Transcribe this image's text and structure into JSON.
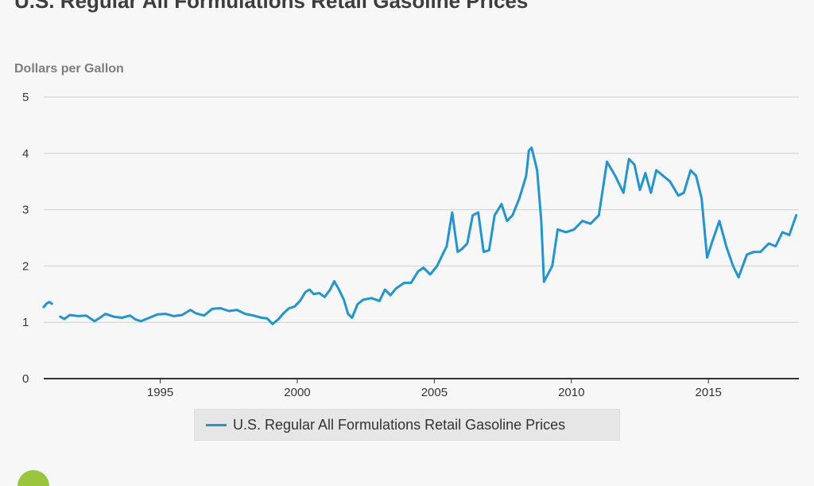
{
  "title": "U.S. Regular All Formulations Retail Gasoline Prices",
  "chart_data": {
    "type": "line",
    "title": "U.S. Regular All Formulations Retail Gasoline Prices",
    "ylabel": "Dollars per Gallon",
    "xlabel": "",
    "ylim": [
      0,
      5
    ],
    "xlim": [
      1990.75,
      2018.3
    ],
    "yticks": [
      0,
      1,
      2,
      3,
      4,
      5
    ],
    "xticks": [
      1995,
      2000,
      2005,
      2010,
      2015
    ],
    "grid": true,
    "legend_position": "bottom",
    "series": [
      {
        "name": "U.S. Regular All Formulations Retail Gasoline Prices",
        "color": "#1f96d3",
        "segments": [
          {
            "x": [
              1990.75,
              1990.85,
              1990.95,
              1991.05
            ],
            "y": [
              1.27,
              1.33,
              1.36,
              1.33
            ]
          },
          {
            "x": [
              1991.35,
              1991.5,
              1991.7,
              1992.0,
              1992.3,
              1992.6,
              1992.8,
              1993.0,
              1993.3,
              1993.6,
              1993.9,
              1994.1,
              1994.3,
              1994.6,
              1994.9,
              1995.2,
              1995.5,
              1995.8,
              1996.1,
              1996.3,
              1996.6,
              1996.9,
              1997.2,
              1997.5,
              1997.8,
              1998.1,
              1998.4,
              1998.7,
              1998.9,
              1999.1,
              1999.3,
              1999.5,
              1999.7,
              1999.9,
              2000.1,
              2000.3,
              2000.45,
              2000.6,
              2000.8,
              2001.0,
              2001.2,
              2001.35,
              2001.5,
              2001.7,
              2001.85,
              2002.0,
              2002.2,
              2002.4,
              2002.7,
              2003.0,
              2003.2,
              2003.4,
              2003.6,
              2003.9,
              2004.15,
              2004.4,
              2004.6,
              2004.85,
              2005.1,
              2005.3,
              2005.45,
              2005.65,
              2005.85,
              2006.0,
              2006.2,
              2006.4,
              2006.6,
              2006.8,
              2007.0,
              2007.2,
              2007.45,
              2007.65,
              2007.85,
              2008.1,
              2008.35,
              2008.45,
              2008.55,
              2008.75,
              2008.9,
              2009.0,
              2009.3,
              2009.5,
              2009.8,
              2010.1,
              2010.4,
              2010.7,
              2011.0,
              2011.3,
              2011.6,
              2011.9,
              2012.1,
              2012.3,
              2012.5,
              2012.7,
              2012.9,
              2013.1,
              2013.35,
              2013.6,
              2013.9,
              2014.1,
              2014.35,
              2014.55,
              2014.75,
              2014.95,
              2015.15,
              2015.4,
              2015.65,
              2015.9,
              2016.1,
              2016.4,
              2016.65,
              2016.9,
              2017.2,
              2017.45,
              2017.7,
              2017.95,
              2018.2
            ],
            "y": [
              1.1,
              1.06,
              1.13,
              1.11,
              1.12,
              1.02,
              1.08,
              1.15,
              1.1,
              1.08,
              1.12,
              1.05,
              1.02,
              1.08,
              1.14,
              1.15,
              1.11,
              1.13,
              1.22,
              1.16,
              1.12,
              1.24,
              1.25,
              1.2,
              1.22,
              1.15,
              1.12,
              1.08,
              1.07,
              0.97,
              1.05,
              1.16,
              1.25,
              1.28,
              1.38,
              1.54,
              1.58,
              1.5,
              1.52,
              1.45,
              1.58,
              1.73,
              1.6,
              1.4,
              1.15,
              1.08,
              1.32,
              1.4,
              1.43,
              1.38,
              1.58,
              1.48,
              1.6,
              1.7,
              1.7,
              1.9,
              1.97,
              1.85,
              2.0,
              2.2,
              2.35,
              2.95,
              2.25,
              2.3,
              2.4,
              2.9,
              2.95,
              2.25,
              2.28,
              2.9,
              3.1,
              2.8,
              2.9,
              3.2,
              3.6,
              4.05,
              4.1,
              3.7,
              2.8,
              1.72,
              2.0,
              2.65,
              2.6,
              2.65,
              2.8,
              2.75,
              2.9,
              3.85,
              3.6,
              3.3,
              3.9,
              3.8,
              3.35,
              3.65,
              3.3,
              3.7,
              3.6,
              3.5,
              3.25,
              3.3,
              3.7,
              3.6,
              3.2,
              2.15,
              2.45,
              2.8,
              2.35,
              2.0,
              1.8,
              2.2,
              2.25,
              2.25,
              2.4,
              2.35,
              2.6,
              2.55,
              2.9
            ]
          }
        ]
      }
    ]
  }
}
